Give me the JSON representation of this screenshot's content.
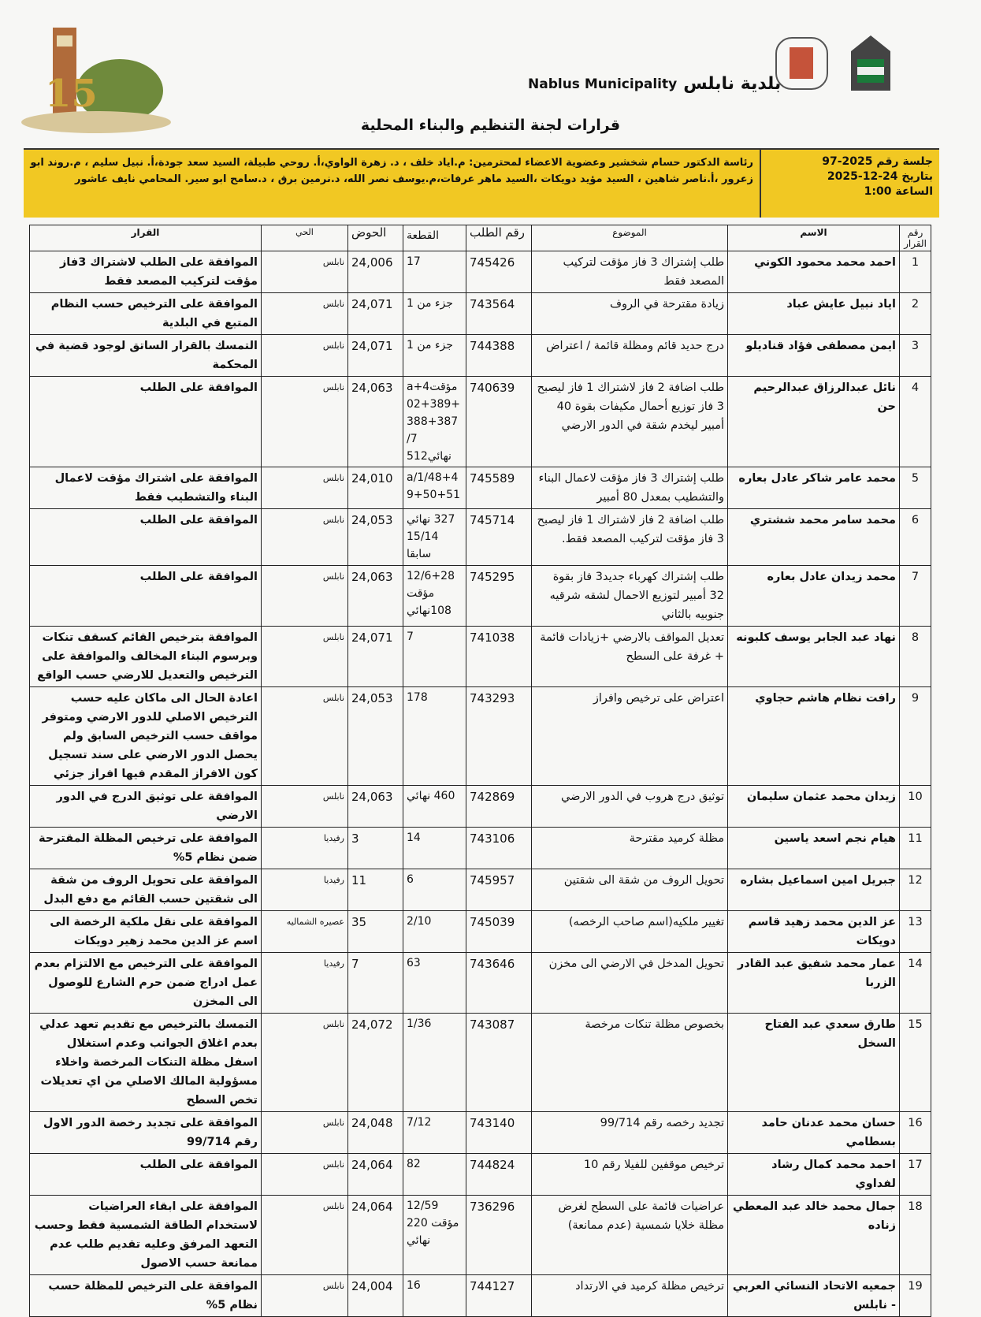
{
  "header": {
    "municipality_ar": "بلدية نابلس",
    "municipality_en": "Nablus Municipality",
    "title": "قرارات لجنة التنظيم والبناء المحلية"
  },
  "session": {
    "number": "جلسة رقم 2025-97",
    "date": "بتاريخ 24-12-2025",
    "time": "الساعة 1:00",
    "members": "رئاسة الدكتور حسام شخشير وعضوية الاعضاء لمحترمين: م.اياد خلف ، د. زهرة الواوي،أ. روحي طبيلة، السيد سعد جودة،أ. نبيل سليم ، م.روند ابو زعرور ،أ.ناصر شاهين ، السيد مؤيد دويكات ،السيد ماهر عرفات،م.يوسف نصر الله، د.نرمين برق ، د.سامح ابو سير. المحامي نايف عاشور"
  },
  "columns": {
    "no": "رقم القرار",
    "name": "الاسم",
    "subject": "الموضوع",
    "request": "رقم الطلب",
    "parcel": "القطعة",
    "basin": "الحوض",
    "district": "الحي",
    "decision": "القرار"
  },
  "rows": [
    {
      "no": "1",
      "name": "احمد محمد محمود الكوني",
      "subject": "طلب إشتراك 3 فاز مؤقت لتركيب المصعد فقط",
      "request": "745426",
      "parcel": "17",
      "basin": "24,006",
      "district": "نابلس",
      "decision": "الموافقة على الطلب لاشتراك 3فاز مؤقت لتركيب المصعد فقط"
    },
    {
      "no": "2",
      "name": "اياد نبيل عايش عباد",
      "subject": "زيادة مقترحة في الروف",
      "request": "743564",
      "parcel": "جزء من 1",
      "basin": "24,071",
      "district": "نابلس",
      "decision": "الموافقة على الترخيص حسب النظام المتبع في البلدية"
    },
    {
      "no": "3",
      "name": "ايمن مصطفى فؤاد قناديلو",
      "subject": "درج حديد قائم ومظلة قائمة / اعتراض",
      "request": "744388",
      "parcel": "جزء من 1",
      "basin": "24,071",
      "district": "نابلس",
      "decision": "التمسك بالقرار الساتق لوجود قضية في المحكمة"
    },
    {
      "no": "4",
      "name": "نائل عبدالرزاق عبدالرحيم حن",
      "subject": "طلب اضافة 2 فاز لاشتراك 1 فاز ليصبح 3 فاز توزيع أحمال مكيفات بقوة 40 أمبير ليخدم شقة في الدور الارضي",
      "request": "740639",
      "parcel": "مؤقتa+4 02+389+ 388+387 /7 نهائي512",
      "basin": "24,063",
      "district": "نابلس",
      "decision": "الموافقة على الطلب"
    },
    {
      "no": "5",
      "name": "محمد عامر شاكر عادل بعاره",
      "subject": "طلب إشتراك 3 فاز مؤقت لاعمال البناء والتشطيب بمعدل 80 أمبير",
      "request": "745589",
      "parcel": "a/1/48+4 9+50+51",
      "basin": "24,010",
      "district": "نابلس",
      "decision": "الموافقة على اشتراك مؤقت لاعمال البناء والتشطيب فقط"
    },
    {
      "no": "6",
      "name": "محمد سامر محمد ششتري",
      "subject": "طلب اضافة 2 فاز لاشتراك 1 فاز ليصبح 3 فاز مؤقت لتركيب المصعد فقط.",
      "request": "745714",
      "parcel": "327 نهائي 15/14 سابقا",
      "basin": "24,053",
      "district": "نابلس",
      "decision": "الموافقة على الطلب"
    },
    {
      "no": "7",
      "name": "محمد زيدان عادل بعاره",
      "subject": "طلب إشتراك كهرباء جديد3 فاز بقوة 32 أمبير لتوزيع الاحمال لشقه شرقيه جنوبيه بالثاني",
      "request": "745295",
      "parcel": "12/6+28 مؤقت 108نهائي",
      "basin": "24,063",
      "district": "نابلس",
      "decision": "الموافقة على الطلب"
    },
    {
      "no": "8",
      "name": "نهاد عبد الجابر يوسف كلبونه",
      "subject": "تعديل المواقف بالارضي +زيادات قائمة + غرفة على السطح",
      "request": "741038",
      "parcel": "7",
      "basin": "24,071",
      "district": "نابلس",
      "decision": "الموافقة بترخيص القائم كسقف تنكات وبرسوم البناء المخالف والموافقة على الترخيص والتعديل للارضي حسب الواقع"
    },
    {
      "no": "9",
      "name": "رافت نظام هاشم حجاوي",
      "subject": "اعتراض على ترخيص وافراز",
      "request": "743293",
      "parcel": "178",
      "basin": "24,053",
      "district": "نابلس",
      "decision": "اعادة الحال الى ماكان عليه حسب الترخيص الاصلي للدور الارضي ومتوفر مواقف حسب الترخيص السابق ولم يحصل الدور الارضي على سند تسجيل كون الافراز المقدم فيها افراز جزئي"
    },
    {
      "no": "10",
      "name": "زيدان محمد عثمان سليمان",
      "subject": "توثيق درج هروب في الدور الارضي",
      "request": "742869",
      "parcel": "460 نهائي",
      "basin": "24,063",
      "district": "نابلس",
      "decision": "الموافقة على توثيق الدرج في الدور الارضي"
    },
    {
      "no": "11",
      "name": "هيام نجم اسعد ياسين",
      "subject": "مظلة كرميد مقترحة",
      "request": "743106",
      "parcel": "14",
      "basin": "3",
      "district": "رفيديا",
      "decision": "الموافقة على ترخيص المظلة المقترحة ضمن نظام 5%"
    },
    {
      "no": "12",
      "name": "جبريل امين اسماعيل بشاره",
      "subject": "تحويل الروف من شقة الى شقتين",
      "request": "745957",
      "parcel": "6",
      "basin": "11",
      "district": "رفيديا",
      "decision": "الموافقة على تحويل الروف من شقة الى شقتين حسب القائم مع دفع البدل"
    },
    {
      "no": "13",
      "name": "عز الدين محمد زهيد قاسم دويكات",
      "subject": "تغيير ملكيه(اسم صاحب الرخصه)",
      "request": "745039",
      "parcel": "2/10",
      "basin": "35",
      "district": "عصيره الشماليه",
      "decision": "الموافقة على نقل ملكية الرخصة الى اسم عز الدين محمد زهير دويكات"
    },
    {
      "no": "14",
      "name": "عمار محمد شفيق عبد القادر الزربا",
      "subject": "تحويل المدخل في الارضي الى مخزن",
      "request": "743646",
      "parcel": "63",
      "basin": "7",
      "district": "رفيديا",
      "decision": "الموافقة على الترخيص مع الالتزام بعدم عمل ادراج ضمن حرم الشارع للوصول الى المخزن"
    },
    {
      "no": "15",
      "name": "طارق سعدي عبد الفتاح السخل",
      "subject": "بخصوص مظلة تنكات مرخصة",
      "request": "743087",
      "parcel": "1/36",
      "basin": "24,072",
      "district": "نابلس",
      "decision": "التمسك بالترخيص مع تقديم تعهد عدلي بعدم اغلاق الجوانب وعدم استغلال اسفل مظلة التنكات المرخصة واخلاء مسؤولية المالك الاصلي من اي تعديلات تخص السطح"
    },
    {
      "no": "16",
      "name": "حسان محمد عدنان حامد بسطامي",
      "subject": "تجديد رخصه رقم 99/714",
      "request": "743140",
      "parcel": "7/12",
      "basin": "24,048",
      "district": "نابلس",
      "decision": "الموافقة على تجديد رخصة الدور الاول رقم 99/714"
    },
    {
      "no": "17",
      "name": "احمد محمد كمال رشاد لفداوي",
      "subject": "ترخيص موقفين للفيلا رقم 10",
      "request": "744824",
      "parcel": "82",
      "basin": "24,064",
      "district": "نابلس",
      "decision": "الموافقة على الطلب"
    },
    {
      "no": "18",
      "name": "جمال محمد خالد عبد المعطي زناده",
      "subject": "عراضيات قائمة على السطح لغرض مظلة خلايا شمسية (عدم ممانعة)",
      "request": "736296",
      "parcel": "12/59 مؤقت 220 نهائي",
      "basin": "24,064",
      "district": "نابلس",
      "decision": "الموافقة على ابقاء العراضيات لاستخدام الطاقة الشمسية فقط وحسب التعهد المرفق وعليه تقديم طلب عدم ممانعة حسب الاصول"
    },
    {
      "no": "19",
      "name": "جمعيه الاتحاد النسائي العربي - نابلس",
      "subject": "ترخيص مظلة كرميد في الارتداد",
      "request": "744127",
      "parcel": "16",
      "basin": "24,004",
      "district": "نابلس",
      "decision": "الموافقة على الترخيص للمظلة حسب نظام 5%"
    }
  ]
}
